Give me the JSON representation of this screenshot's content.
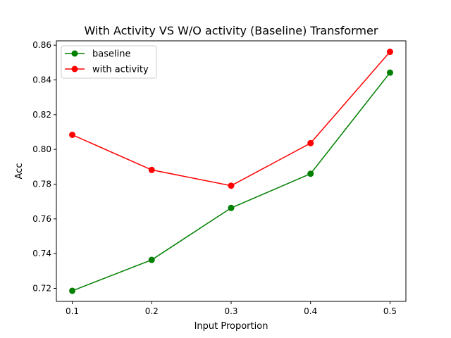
{
  "chart_data": {
    "type": "line",
    "title": "With Activity VS W/O activity (Baseline) Transformer",
    "xlabel": "Input Proportion",
    "ylabel": "Acc",
    "x": [
      0.1,
      0.2,
      0.3,
      0.4,
      0.5
    ],
    "x_ticks": [
      "0.1",
      "0.2",
      "0.3",
      "0.4",
      "0.5"
    ],
    "y_ticks": [
      "0.72",
      "0.74",
      "0.76",
      "0.78",
      "0.80",
      "0.82",
      "0.84",
      "0.86"
    ],
    "xlim": [
      0.08,
      0.52
    ],
    "ylim": [
      0.7125,
      0.8625
    ],
    "grid": false,
    "legend_position": "top-left",
    "series": [
      {
        "name": "baseline",
        "color": "#008000",
        "marker": "circle",
        "values": [
          0.7186,
          0.7364,
          0.7663,
          0.786,
          0.8442
        ]
      },
      {
        "name": "with activity",
        "color": "#ff0000",
        "marker": "circle",
        "values": [
          0.8084,
          0.7882,
          0.7791,
          0.8036,
          0.8562
        ]
      }
    ]
  }
}
